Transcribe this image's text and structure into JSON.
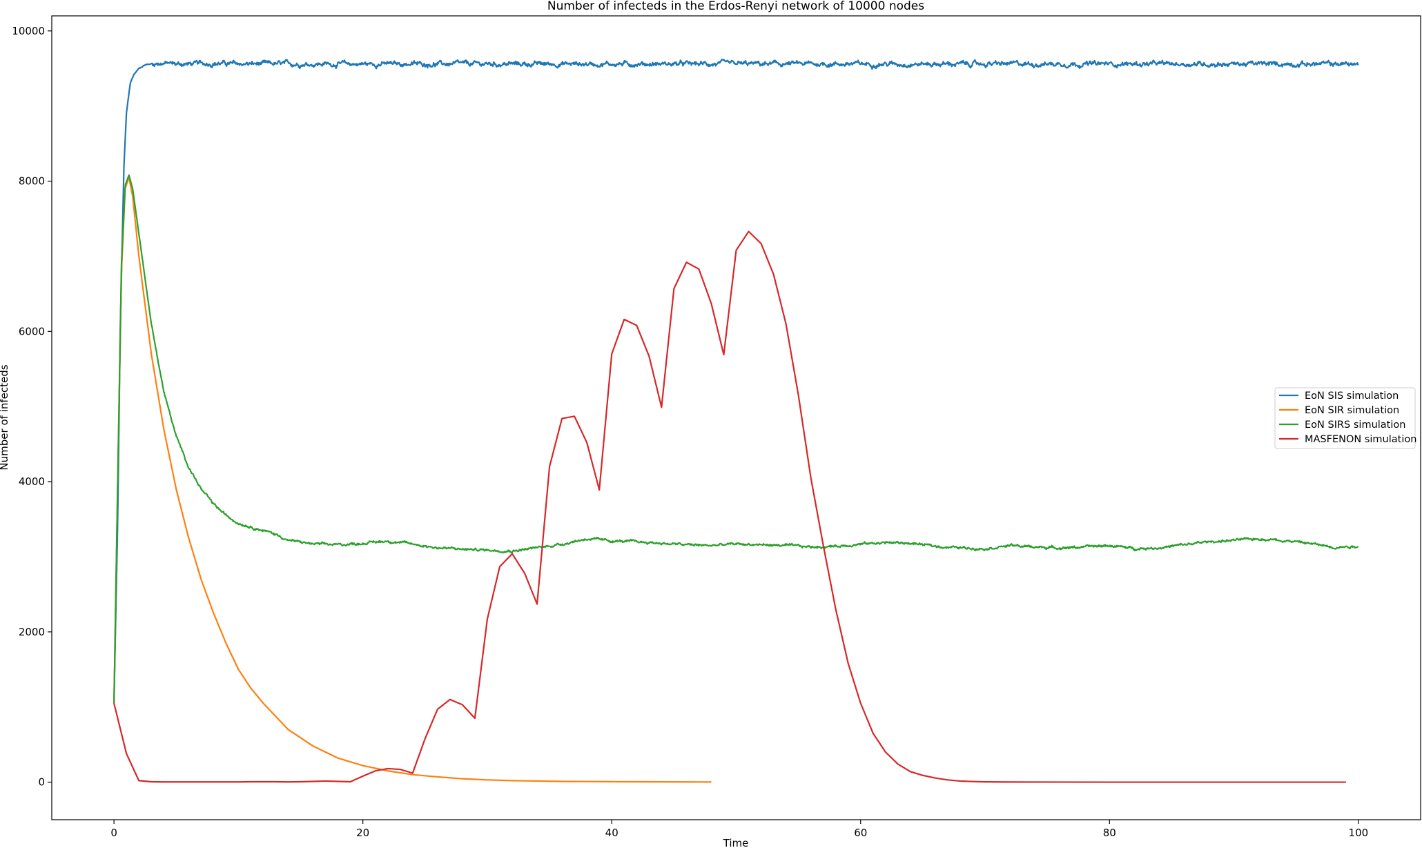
{
  "chart_data": {
    "type": "line",
    "title": "Number of infecteds in the Erdos-Renyi network of 10000 nodes",
    "xlabel": "Time",
    "ylabel": "Number of infecteds",
    "xlim": [
      -5,
      105
    ],
    "ylim": [
      -500,
      10200
    ],
    "xticks": [
      0,
      20,
      40,
      60,
      80,
      100
    ],
    "yticks": [
      0,
      2000,
      4000,
      6000,
      8000,
      10000
    ],
    "grid": false,
    "legend_position": "center-right",
    "series": [
      {
        "name": "EoN SIS simulation",
        "color": "#1f77b4",
        "noise": 35,
        "x": [
          0,
          0.3,
          0.5,
          0.8,
          1.0,
          1.3,
          1.6,
          2.0,
          2.5,
          3.0,
          3.5,
          4,
          5,
          6,
          8,
          10,
          15,
          20,
          30,
          40,
          50,
          60,
          70,
          80,
          90,
          100
        ],
        "y": [
          1050,
          3500,
          6000,
          8200,
          8900,
          9300,
          9420,
          9500,
          9550,
          9560,
          9570,
          9570,
          9560,
          9560,
          9570,
          9560,
          9560,
          9560,
          9560,
          9560,
          9560,
          9560,
          9560,
          9560,
          9560,
          9560
        ]
      },
      {
        "name": "EoN SIR simulation",
        "color": "#ff7f0e",
        "noise": 0,
        "x": [
          0,
          0.3,
          0.6,
          0.9,
          1.2,
          1.5,
          2,
          3,
          4,
          5,
          6,
          7,
          8,
          9,
          10,
          11,
          12,
          14,
          16,
          18,
          20,
          22,
          24,
          26,
          28,
          30,
          32,
          34,
          36,
          38,
          40,
          42,
          44,
          46,
          48
        ],
        "y": [
          1050,
          4000,
          6800,
          7900,
          8050,
          7800,
          7000,
          5700,
          4700,
          3900,
          3250,
          2700,
          2250,
          1850,
          1500,
          1250,
          1050,
          700,
          480,
          320,
          220,
          150,
          100,
          70,
          45,
          30,
          20,
          15,
          10,
          8,
          6,
          5,
          4,
          3,
          2
        ]
      },
      {
        "name": "EoN SIRS simulation",
        "color": "#2ca02c",
        "noise": 18,
        "x": [
          0,
          0.3,
          0.6,
          0.9,
          1.2,
          1.5,
          2,
          3,
          4,
          5,
          6,
          7,
          8,
          9,
          10,
          11,
          12,
          13,
          14,
          16,
          18,
          20,
          22,
          24,
          26,
          28,
          30,
          32,
          34,
          36,
          38,
          40,
          42,
          44,
          46,
          48,
          50,
          52,
          54,
          56,
          58,
          60,
          62,
          64,
          66,
          68,
          70,
          72,
          74,
          76,
          78,
          80,
          82,
          84,
          86,
          88,
          90,
          92,
          94,
          96,
          98,
          100
        ],
        "y": [
          1050,
          4000,
          6900,
          7950,
          8080,
          7900,
          7300,
          6100,
          5200,
          4600,
          4200,
          3900,
          3700,
          3550,
          3450,
          3400,
          3350,
          3300,
          3220,
          3170,
          3160,
          3180,
          3210,
          3170,
          3120,
          3100,
          3090,
          3080,
          3120,
          3170,
          3240,
          3210,
          3200,
          3180,
          3160,
          3150,
          3170,
          3160,
          3150,
          3130,
          3140,
          3170,
          3190,
          3180,
          3140,
          3120,
          3110,
          3150,
          3130,
          3120,
          3130,
          3150,
          3110,
          3120,
          3160,
          3200,
          3220,
          3240,
          3220,
          3180,
          3130,
          3140
        ]
      },
      {
        "name": "MASFENON simulation",
        "color": "#d62728",
        "noise": 0,
        "x": [
          0,
          1,
          2,
          3,
          4,
          5,
          6,
          7,
          8,
          9,
          10,
          11,
          12,
          13,
          14,
          15,
          16,
          17,
          18,
          19,
          20,
          21,
          22,
          23,
          24,
          25,
          26,
          27,
          28,
          29,
          30,
          31,
          32,
          33,
          34,
          35,
          36,
          37,
          38,
          39,
          40,
          41,
          42,
          43,
          44,
          45,
          46,
          47,
          48,
          49,
          50,
          51,
          52,
          53,
          54,
          55,
          56,
          57,
          58,
          59,
          60,
          61,
          62,
          63,
          64,
          65,
          66,
          67,
          68,
          69,
          70,
          72,
          75,
          80,
          85,
          90,
          95,
          99
        ],
        "y": [
          1050,
          380,
          20,
          5,
          3,
          3,
          3,
          3,
          3,
          3,
          3,
          5,
          5,
          5,
          3,
          5,
          10,
          15,
          10,
          5,
          80,
          150,
          180,
          170,
          120,
          580,
          970,
          1100,
          1030,
          850,
          2170,
          2870,
          3040,
          2780,
          2370,
          4200,
          4840,
          4870,
          4520,
          3890,
          5700,
          6160,
          6080,
          5670,
          4990,
          6570,
          6920,
          6830,
          6370,
          5690,
          7080,
          7330,
          7170,
          6760,
          6100,
          5150,
          4050,
          3150,
          2300,
          1580,
          1050,
          650,
          400,
          240,
          140,
          90,
          55,
          30,
          15,
          8,
          4,
          2,
          1,
          0,
          0,
          0,
          0,
          0
        ]
      }
    ]
  }
}
